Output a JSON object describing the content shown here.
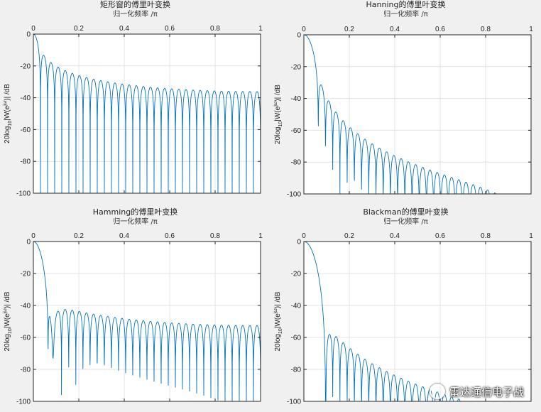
{
  "colors": {
    "line": "#0072bd",
    "axes": "#262626",
    "grid": "#e3e3e3",
    "plot_bg": "#ffffff"
  },
  "watermark": {
    "text": "雷达通信电子战",
    "icon": "wechat-icon"
  },
  "chart_data": [
    {
      "type": "line",
      "title": "矩形窗的傅里叶变换",
      "xlabel": "归一化频率 /π",
      "ylabel": "20log10|W(e^jω)| /dB",
      "xlim": [
        0,
        1
      ],
      "ylim": [
        -100,
        0
      ],
      "xticks": [
        "0",
        "0.2",
        "0.4",
        "0.6",
        "0.8",
        "1"
      ],
      "yticks": [
        "0",
        "-20",
        "-40",
        "-60",
        "-80",
        "-100"
      ],
      "grid": true,
      "series": [
        {
          "window": "rectangular",
          "mainlobe_width": 0.032,
          "x": [
            0,
            0.016,
            0.032,
            0.05,
            0.15,
            0.25,
            0.35,
            0.45,
            0.55,
            0.65,
            0.75,
            0.85,
            0.95,
            1.0
          ],
          "y": [
            0,
            -4,
            -48,
            -13.5,
            -22,
            -27,
            -30,
            -32,
            -33,
            -33.5,
            -34,
            -34.5,
            -35,
            -35
          ]
        }
      ]
    },
    {
      "type": "line",
      "title": "Hanning的傅里叶变换",
      "xlabel": "归一化频率 /π",
      "ylabel": "20log10|W(e^jω)| /dB",
      "xlim": [
        0,
        1
      ],
      "ylim": [
        -100,
        0
      ],
      "xticks": [
        "0",
        "0.2",
        "0.4",
        "0.6",
        "0.8",
        "1"
      ],
      "yticks": [
        "0",
        "-20",
        "-40",
        "-60",
        "-80",
        "-100"
      ],
      "grid": true,
      "series": [
        {
          "window": "hanning",
          "mainlobe_width": 0.064,
          "x": [
            0,
            0.03,
            0.064,
            0.08,
            0.1,
            0.2,
            0.3,
            0.4,
            0.5,
            0.6,
            0.7,
            0.8,
            0.9
          ],
          "y": [
            0,
            -6,
            -48,
            -32,
            -34,
            -53,
            -63,
            -70,
            -77,
            -82,
            -87,
            -92,
            -98
          ]
        }
      ]
    },
    {
      "type": "line",
      "title": "Hamming的傅里叶变换",
      "xlabel": "归一化频率 /π",
      "ylabel": "20log10|W(e^jω)| /dB",
      "xlim": [
        0,
        1
      ],
      "ylim": [
        -100,
        0
      ],
      "xticks": [
        "0",
        "0.2",
        "0.4",
        "0.6",
        "0.8",
        "1"
      ],
      "yticks": [
        "0",
        "-20",
        "-40",
        "-60",
        "-80",
        "-100"
      ],
      "grid": true,
      "series": [
        {
          "window": "hamming",
          "mainlobe_width": 0.082,
          "x": [
            0,
            0.04,
            0.082,
            0.09,
            0.12,
            0.2,
            0.3,
            0.4,
            0.5,
            0.6,
            0.7,
            0.8,
            0.9,
            1.0
          ],
          "y": [
            0,
            -10,
            -100,
            -47,
            -44,
            -42.5,
            -43.5,
            -45,
            -47,
            -49,
            -50,
            -51,
            -52,
            -52
          ]
        }
      ]
    },
    {
      "type": "line",
      "title": "Blackman的傅里叶变换",
      "xlabel": "归一化频率 /π",
      "ylabel": "20log10|W(e^jω)| /dB",
      "xlim": [
        0,
        1
      ],
      "ylim": [
        -100,
        0
      ],
      "xticks": [
        "0",
        "0.2",
        "0.4",
        "0.6",
        "0.8",
        "1"
      ],
      "yticks": [
        "0",
        "-20",
        "-40",
        "-60",
        "-80",
        "-100"
      ],
      "grid": true,
      "series": [
        {
          "window": "blackman",
          "mainlobe_width": 0.12,
          "x": [
            0,
            0.06,
            0.12,
            0.14,
            0.2,
            0.3,
            0.4,
            0.5,
            0.6,
            0.7,
            0.8,
            0.9
          ],
          "y": [
            0,
            -12,
            -96,
            -58,
            -62,
            -72,
            -80,
            -85,
            -89,
            -93,
            -96,
            -99
          ]
        }
      ]
    }
  ]
}
